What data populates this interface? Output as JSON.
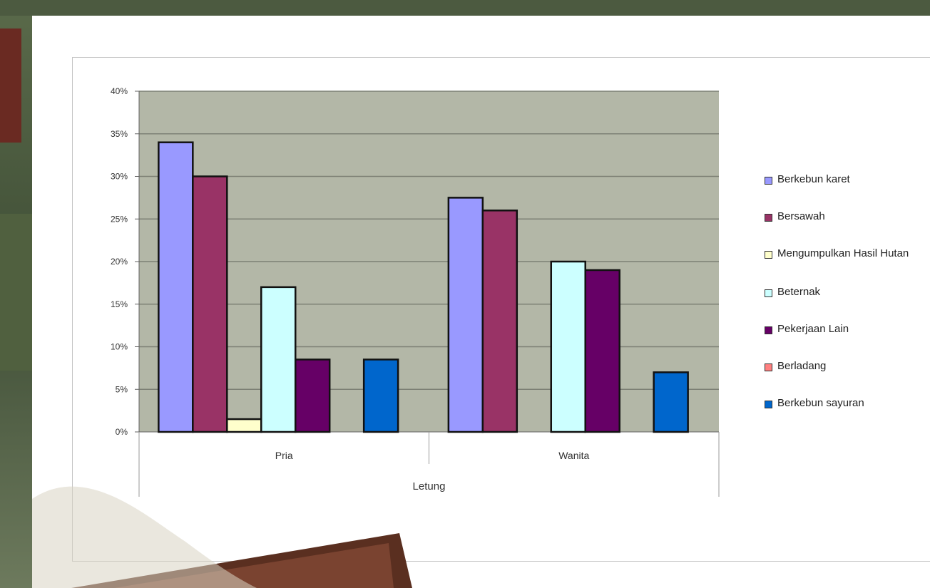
{
  "colors": {
    "plot_bg": "#b3b7a7",
    "gridline": "#7d8075",
    "axis": "#606060",
    "bar_outline": "#111111"
  },
  "chart_data": {
    "type": "bar",
    "title": "",
    "xlabel": "Letung",
    "ylabel": "",
    "ylim": [
      0,
      0.4
    ],
    "yticks": [
      "0%",
      "5%",
      "10%",
      "15%",
      "20%",
      "25%",
      "30%",
      "35%",
      "40%"
    ],
    "categories": [
      "Pria",
      "Wanita"
    ],
    "grid": true,
    "legend_position": "right",
    "series": [
      {
        "name": "Berkebun karet",
        "color": "#9999ff",
        "values": [
          0.34,
          0.275
        ]
      },
      {
        "name": "Bersawah",
        "color": "#993366",
        "values": [
          0.3,
          0.26
        ]
      },
      {
        "name": "Mengumpulkan Hasil Hutan",
        "color": "#ffffcc",
        "values": [
          0.015,
          0
        ]
      },
      {
        "name": "Beternak",
        "color": "#ccffff",
        "values": [
          0.17,
          0.2
        ]
      },
      {
        "name": "Pekerjaan Lain",
        "color": "#660066",
        "values": [
          0.085,
          0.19
        ]
      },
      {
        "name": "Berladang",
        "color": "#ff8080",
        "values": [
          0,
          0
        ]
      },
      {
        "name": "Berkebun sayuran",
        "color": "#0066cc",
        "values": [
          0.085,
          0.07
        ]
      }
    ]
  }
}
